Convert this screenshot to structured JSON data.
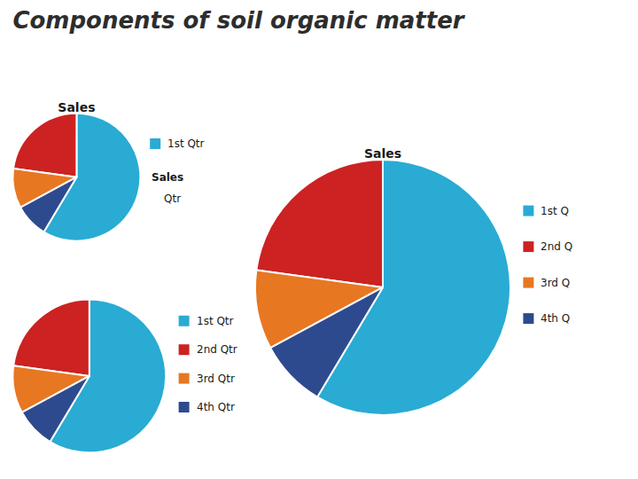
{
  "title": "Components of soil organic matter",
  "chart_data": [
    {
      "type": "pie",
      "title": "Sales",
      "categories": [
        "1st Qtr",
        null,
        null,
        null
      ],
      "values": [
        8.2,
        3.2,
        1.4,
        1.2
      ],
      "colors": [
        "#29ABD4",
        "#CC2222",
        "#E87722",
        "#2E4A8E"
      ],
      "legend": "right",
      "annotations": [
        "Sales",
        "Qtr"
      ]
    },
    {
      "type": "pie",
      "title": "Sales",
      "categories": [
        "1st Q",
        "2nd Q",
        "3rd Q",
        "4th Q"
      ],
      "values": [
        8.2,
        3.2,
        1.4,
        1.2
      ],
      "colors": [
        "#29ABD4",
        "#CC2222",
        "#E87722",
        "#2E4A8E"
      ],
      "legend": "right"
    },
    {
      "type": "pie",
      "categories": [
        "1st Qtr",
        "2nd Qtr",
        "3rd Qtr",
        "4th Qtr"
      ],
      "values": [
        8.2,
        3.2,
        1.4,
        1.2
      ],
      "colors": [
        "#29ABD4",
        "#CC2222",
        "#E87722",
        "#2E4A8E"
      ],
      "legend": "right"
    }
  ]
}
